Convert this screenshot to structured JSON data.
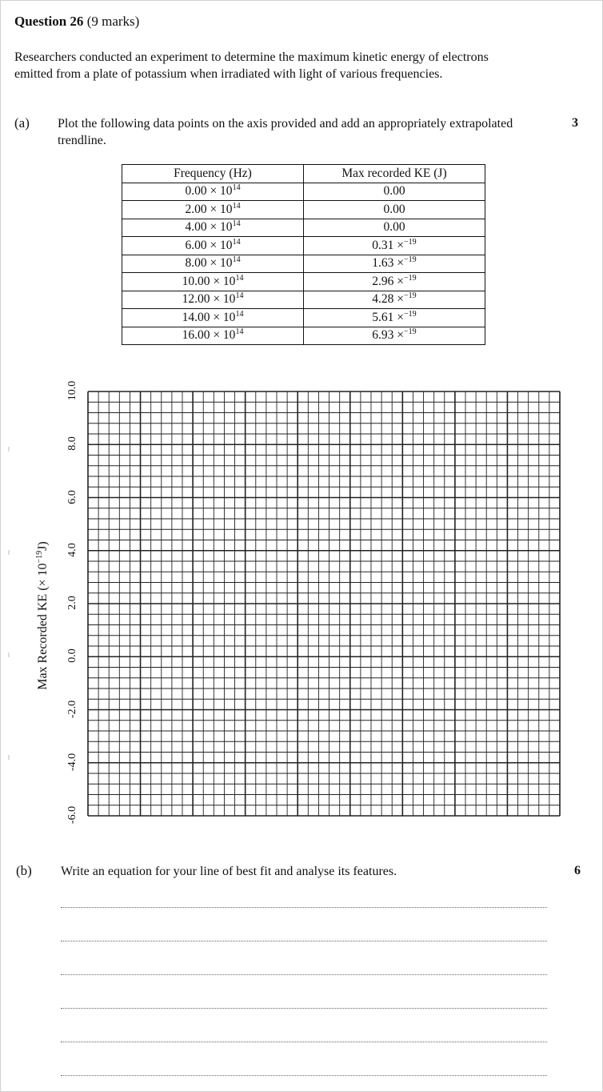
{
  "question": {
    "number_label": "Question 26",
    "marks_label": "(9 marks)"
  },
  "intro": "Researchers conducted an experiment to determine the maximum kinetic energy of electrons emitted from a plate of potassium when irradiated with light of various frequencies.",
  "part_a": {
    "label": "(a)",
    "text": "Plot the following data points on the axis provided and add an appropriately extrapolated trendline.",
    "marks": "3"
  },
  "table": {
    "headers": [
      "Frequency (Hz)",
      "Max recorded KE (J)"
    ],
    "rows": [
      {
        "freq": "0.00 × 10",
        "freq_exp": "14",
        "ke": "0.00",
        "ke_exp": ""
      },
      {
        "freq": "2.00 × 10",
        "freq_exp": "14",
        "ke": "0.00",
        "ke_exp": ""
      },
      {
        "freq": "4.00 × 10",
        "freq_exp": "14",
        "ke": "0.00",
        "ke_exp": ""
      },
      {
        "freq": "6.00 × 10",
        "freq_exp": "14",
        "ke": "0.31 ×",
        "ke_exp": "−19"
      },
      {
        "freq": "8.00 × 10",
        "freq_exp": "14",
        "ke": "1.63 ×",
        "ke_exp": "−19"
      },
      {
        "freq": "10.00 × 10",
        "freq_exp": "14",
        "ke": "2.96 ×",
        "ke_exp": "−19"
      },
      {
        "freq": "12.00 × 10",
        "freq_exp": "14",
        "ke": "4.28 ×",
        "ke_exp": "−19"
      },
      {
        "freq": "14.00 × 10",
        "freq_exp": "14",
        "ke": "5.61 ×",
        "ke_exp": "−19"
      },
      {
        "freq": "16.00 × 10",
        "freq_exp": "14",
        "ke": "6.93 ×",
        "ke_exp": "−19"
      }
    ]
  },
  "graph": {
    "ylabel_main": "Max Recorded KE (× 10",
    "ylabel_exp": "−19",
    "ylabel_end": "J)",
    "y_ticks": [
      "10.0",
      "8.0",
      "6.0",
      "4.0",
      "2.0",
      "0.0",
      "-2.0",
      "-4.0",
      "-6.0"
    ]
  },
  "part_b": {
    "label": "(b)",
    "text": "Write an equation for your line of best fit and analyse its features.",
    "marks": "6",
    "answer_line_count": 6
  }
}
